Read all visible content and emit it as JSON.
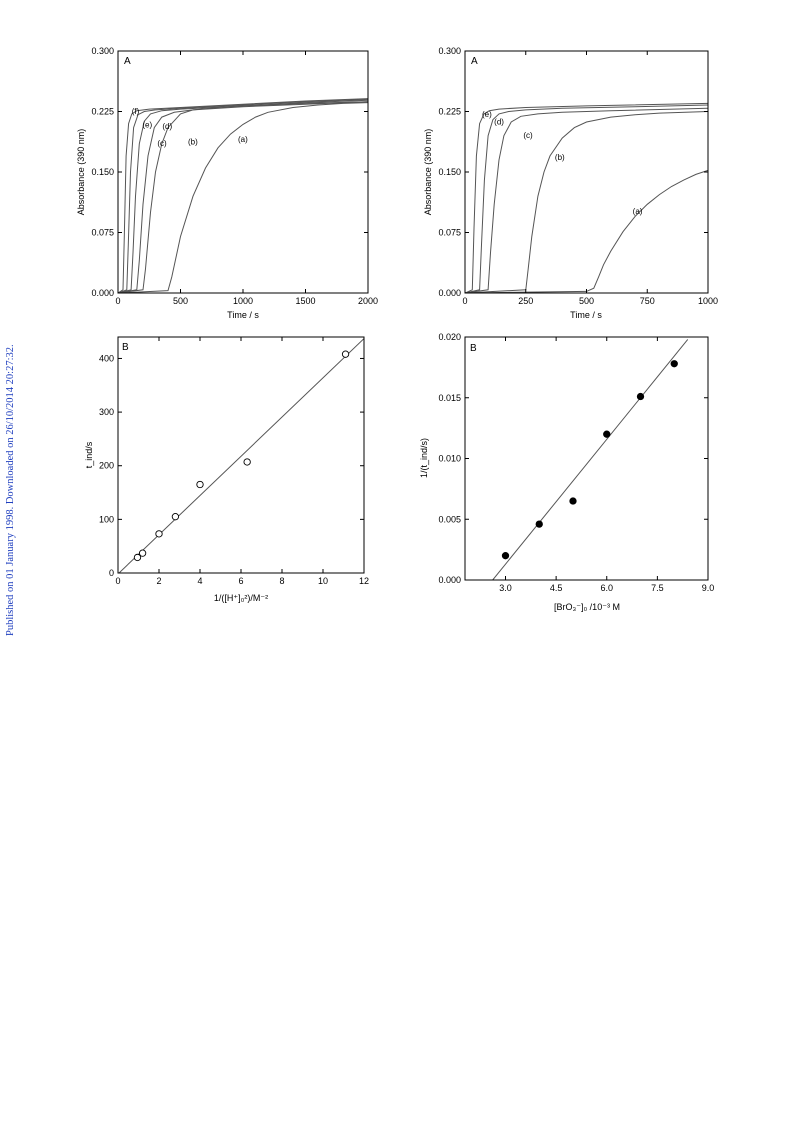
{
  "side_note": "Published on 01 January 1998. Downloaded on 26/10/2014 20:27:32.",
  "chart_data": [
    {
      "id": "tl",
      "type": "line",
      "panel_label": "A",
      "xlabel": "Time / s",
      "ylabel": "Absorbance (390 nm)",
      "xlim": [
        0,
        2000
      ],
      "ylim": [
        0,
        0.3
      ],
      "xticks": [
        0,
        500,
        1000,
        1500,
        2000
      ],
      "xtick_labels": [
        "0",
        "500",
        "1000",
        "1500",
        "2000"
      ],
      "yticks": [
        0,
        0.075,
        0.15,
        0.225,
        0.3
      ],
      "ytick_labels": [
        "0.000",
        "0.075",
        "0.150",
        "0.225",
        "0.300"
      ],
      "grid": false,
      "series": [
        {
          "name": "(a)",
          "x": [
            0,
            400,
            430,
            500,
            600,
            700,
            800,
            900,
            1000,
            1100,
            1200,
            1400,
            1600,
            1800,
            2000
          ],
          "y": [
            0,
            0.003,
            0.02,
            0.07,
            0.12,
            0.155,
            0.18,
            0.197,
            0.209,
            0.218,
            0.224,
            0.23,
            0.233,
            0.235,
            0.236
          ]
        },
        {
          "name": "(b)",
          "x": [
            0,
            200,
            220,
            260,
            300,
            350,
            400,
            500,
            600,
            800,
            1000,
            1500,
            2000
          ],
          "y": [
            0,
            0.004,
            0.03,
            0.1,
            0.15,
            0.185,
            0.205,
            0.222,
            0.227,
            0.23,
            0.232,
            0.235,
            0.237
          ]
        },
        {
          "name": "(c)",
          "x": [
            0,
            150,
            170,
            200,
            240,
            290,
            350,
            450,
            600,
            1000,
            1500,
            2000
          ],
          "y": [
            0,
            0.004,
            0.04,
            0.11,
            0.17,
            0.205,
            0.218,
            0.224,
            0.227,
            0.231,
            0.234,
            0.237
          ]
        },
        {
          "name": "(d)",
          "x": [
            0,
            105,
            120,
            140,
            170,
            210,
            260,
            350,
            500,
            1000,
            1500,
            2000
          ],
          "y": [
            0,
            0.004,
            0.05,
            0.12,
            0.185,
            0.213,
            0.222,
            0.226,
            0.228,
            0.232,
            0.236,
            0.239
          ]
        },
        {
          "name": "(e)",
          "x": [
            0,
            70,
            82,
            100,
            125,
            160,
            210,
            300,
            500,
            1000,
            1500,
            2000
          ],
          "y": [
            0,
            0.004,
            0.06,
            0.15,
            0.205,
            0.221,
            0.225,
            0.227,
            0.229,
            0.233,
            0.237,
            0.24
          ]
        },
        {
          "name": "(f)",
          "x": [
            0,
            40,
            50,
            65,
            85,
            110,
            150,
            250,
            500,
            1000,
            1500,
            2000
          ],
          "y": [
            0,
            0.004,
            0.07,
            0.17,
            0.21,
            0.222,
            0.226,
            0.228,
            0.23,
            0.234,
            0.238,
            0.241
          ]
        }
      ],
      "curve_labels": [
        {
          "text": "(a)",
          "x": 960,
          "y": 0.187
        },
        {
          "text": "(b)",
          "x": 560,
          "y": 0.184
        },
        {
          "text": "(c)",
          "x": 315,
          "y": 0.182
        },
        {
          "text": "(d)",
          "x": 355,
          "y": 0.203
        },
        {
          "text": "(e)",
          "x": 195,
          "y": 0.205
        },
        {
          "text": "(f)",
          "x": 110,
          "y": 0.222
        }
      ]
    },
    {
      "id": "tr",
      "type": "line",
      "panel_label": "A",
      "xlabel": "Time / s",
      "ylabel": "Absorbance (390 nm)",
      "xlim": [
        0,
        1000
      ],
      "ylim": [
        0,
        0.3
      ],
      "xticks": [
        0,
        250,
        500,
        750,
        1000
      ],
      "xtick_labels": [
        "0",
        "250",
        "500",
        "750",
        "1000"
      ],
      "yticks": [
        0,
        0.075,
        0.15,
        0.225,
        0.3
      ],
      "ytick_labels": [
        "0.000",
        "0.075",
        "0.150",
        "0.225",
        "0.300"
      ],
      "grid": false,
      "series": [
        {
          "name": "(a)",
          "x": [
            0,
            500,
            530,
            550,
            570,
            600,
            650,
            700,
            750,
            800,
            850,
            900,
            950,
            1000
          ],
          "y": [
            0,
            0.002,
            0.006,
            0.02,
            0.035,
            0.052,
            0.076,
            0.095,
            0.11,
            0.122,
            0.132,
            0.14,
            0.147,
            0.152
          ]
        },
        {
          "name": "(b)",
          "x": [
            0,
            250,
            260,
            275,
            300,
            325,
            350,
            400,
            450,
            500,
            600,
            700,
            800,
            1000
          ],
          "y": [
            0,
            0.004,
            0.03,
            0.07,
            0.12,
            0.15,
            0.17,
            0.192,
            0.205,
            0.212,
            0.218,
            0.221,
            0.223,
            0.225
          ]
        },
        {
          "name": "(c)",
          "x": [
            0,
            95,
            105,
            120,
            140,
            160,
            190,
            230,
            300,
            400,
            600,
            1000
          ],
          "y": [
            0,
            0.004,
            0.05,
            0.11,
            0.165,
            0.195,
            0.212,
            0.219,
            0.222,
            0.224,
            0.226,
            0.229
          ]
        },
        {
          "name": "(d)",
          "x": [
            0,
            60,
            68,
            80,
            95,
            115,
            140,
            180,
            250,
            400,
            700,
            1000
          ],
          "y": [
            0,
            0.004,
            0.06,
            0.14,
            0.195,
            0.215,
            0.222,
            0.225,
            0.227,
            0.229,
            0.231,
            0.233
          ]
        },
        {
          "name": "(e)",
          "x": [
            0,
            30,
            37,
            47,
            60,
            78,
            100,
            140,
            250,
            500,
            1000
          ],
          "y": [
            0,
            0.004,
            0.08,
            0.17,
            0.21,
            0.222,
            0.226,
            0.228,
            0.23,
            0.232,
            0.235
          ]
        }
      ],
      "curve_labels": [
        {
          "text": "(a)",
          "x": 690,
          "y": 0.098
        },
        {
          "text": "(b)",
          "x": 370,
          "y": 0.165
        },
        {
          "text": "(c)",
          "x": 240,
          "y": 0.192
        },
        {
          "text": "(d)",
          "x": 120,
          "y": 0.209
        },
        {
          "text": "(e)",
          "x": 70,
          "y": 0.218
        }
      ]
    },
    {
      "id": "bl",
      "type": "scatter",
      "panel_label": "B",
      "xlabel": "1/([H⁺]₀²)/M⁻²",
      "ylabel": "t_ind/s",
      "xlim": [
        0,
        12
      ],
      "ylim": [
        0,
        440
      ],
      "xticks": [
        0,
        2,
        4,
        6,
        8,
        10,
        12
      ],
      "xtick_labels": [
        "0",
        "2",
        "4",
        "6",
        "8",
        "10",
        "12"
      ],
      "yticks": [
        0,
        100,
        200,
        300,
        400
      ],
      "ytick_labels": [
        "0",
        "100",
        "200",
        "300",
        "400"
      ],
      "grid": false,
      "marker": "open-circle",
      "points": {
        "x": [
          0.95,
          1.2,
          2.0,
          2.8,
          4.0,
          6.3,
          11.1
        ],
        "y": [
          29,
          37,
          73,
          105,
          165,
          207,
          408
        ]
      },
      "fit_line": {
        "x": [
          0.05,
          12
        ],
        "y": [
          0,
          437
        ]
      }
    },
    {
      "id": "br",
      "type": "scatter",
      "panel_label": "B",
      "xlabel": "[BrO₃⁻]₀ /10⁻³ M",
      "ylabel": "1/(t_ind/s)",
      "xlim": [
        1.8,
        9.0
      ],
      "ylim": [
        0,
        0.02
      ],
      "xticks": [
        3.0,
        4.5,
        6.0,
        7.5,
        9.0
      ],
      "xtick_labels": [
        "3.0",
        "4.5",
        "6.0",
        "7.5",
        "9.0"
      ],
      "yticks": [
        0,
        0.005,
        0.01,
        0.015,
        0.02
      ],
      "ytick_labels": [
        "0.000",
        "0.005",
        "0.010",
        "0.015",
        "0.020"
      ],
      "grid": false,
      "marker": "filled-circle",
      "points": {
        "x": [
          3.0,
          4.0,
          5.0,
          6.0,
          7.0,
          8.0
        ],
        "y": [
          0.002,
          0.0046,
          0.0065,
          0.012,
          0.0151,
          0.0178
        ]
      },
      "fit_line": {
        "x": [
          2.62,
          8.4
        ],
        "y": [
          0,
          0.0198
        ]
      }
    }
  ]
}
